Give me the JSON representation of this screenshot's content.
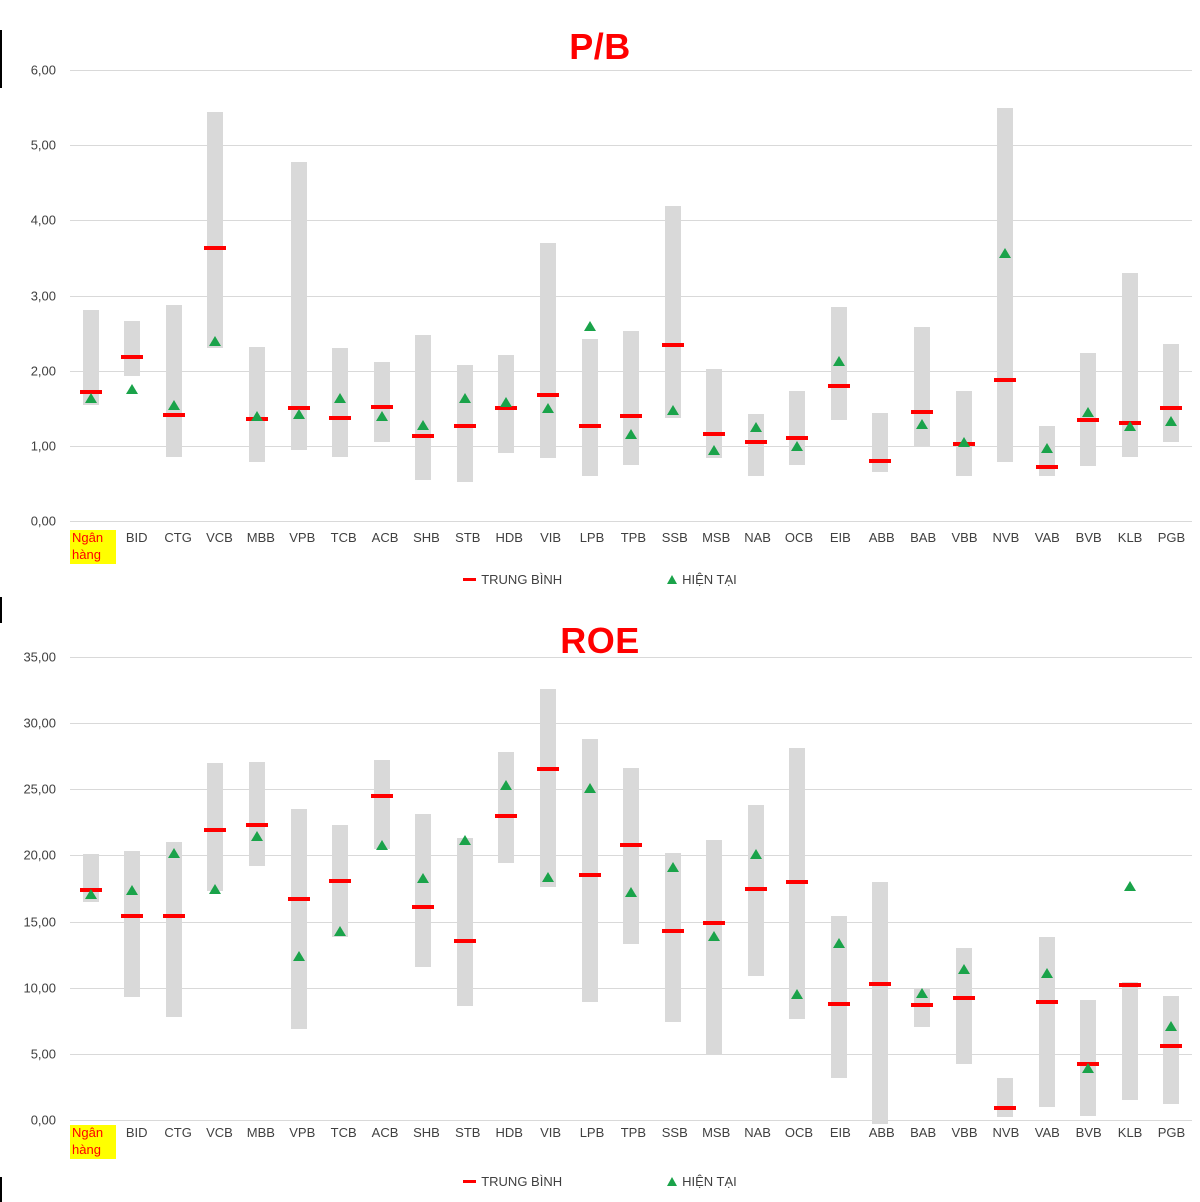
{
  "colors": {
    "bar": "#d9d9d9",
    "average_marker": "#ff0000",
    "current_marker": "#1aa34a",
    "title": "#ff0000",
    "axis_text": "#404040",
    "gridline": "#d9d9d9",
    "highlight_background": "#ffff00",
    "highlight_text": "#ff0000"
  },
  "chart_data": [
    {
      "type": "bar",
      "subtype": "floating-range-bar-with-markers",
      "title": "P/B",
      "highlight_first": true,
      "legend": {
        "average": "TRUNG BÌNH",
        "current": "HIỆN TẠI"
      },
      "y_axis": {
        "min": 0,
        "max": 6,
        "step": 1,
        "tick_labels": [
          "6,00",
          "5,00",
          "4,00",
          "3,00",
          "2,00",
          "1,00",
          "0,00"
        ],
        "grid": true
      },
      "categories": [
        "Ngân hàng",
        "BID",
        "CTG",
        "VCB",
        "MBB",
        "VPB",
        "TCB",
        "ACB",
        "SHB",
        "STB",
        "HDB",
        "VIB",
        "LPB",
        "TPB",
        "SSB",
        "MSB",
        "NAB",
        "OCB",
        "EIB",
        "ABB",
        "BAB",
        "VBB",
        "NVB",
        "VAB",
        "BVB",
        "KLB",
        "PGB"
      ],
      "series": [
        {
          "name": "range",
          "type": "bar-range",
          "low": [
            1.55,
            1.93,
            0.85,
            2.3,
            0.78,
            0.95,
            0.85,
            1.05,
            0.55,
            0.52,
            0.9,
            0.84,
            0.6,
            0.75,
            1.37,
            0.84,
            0.6,
            0.75,
            1.35,
            0.65,
            1.0,
            0.6,
            0.78,
            0.6,
            0.73,
            0.85,
            1.05
          ],
          "high": [
            2.81,
            2.66,
            2.87,
            5.44,
            2.32,
            4.78,
            2.3,
            2.12,
            2.47,
            2.07,
            2.21,
            3.7,
            2.42,
            2.53,
            4.19,
            2.02,
            1.42,
            1.73,
            2.85,
            1.44,
            2.58,
            1.73,
            5.5,
            1.27,
            2.23,
            3.3,
            2.35
          ]
        },
        {
          "name": "TRUNG BÌNH",
          "type": "dash",
          "color": "#ff0000",
          "values": [
            1.72,
            2.18,
            1.41,
            3.63,
            1.36,
            1.5,
            1.37,
            1.52,
            1.13,
            1.27,
            1.51,
            1.68,
            1.27,
            1.4,
            2.34,
            1.16,
            1.05,
            1.1,
            1.8,
            0.8,
            1.45,
            1.02,
            1.88,
            0.72,
            1.34,
            1.3,
            1.5
          ]
        },
        {
          "name": "HIỆN TẠI",
          "type": "triangle",
          "color": "#1aa34a",
          "values": [
            1.63,
            1.75,
            1.55,
            2.4,
            1.4,
            1.42,
            1.64,
            1.4,
            1.28,
            1.63,
            1.58,
            1.51,
            2.6,
            1.16,
            1.48,
            0.94,
            1.25,
            1.0,
            2.13,
            null,
            1.29,
            1.05,
            3.57,
            0.97,
            1.45,
            1.27,
            1.33
          ]
        }
      ]
    },
    {
      "type": "bar",
      "subtype": "floating-range-bar-with-markers",
      "title": "ROE",
      "highlight_first": true,
      "legend": {
        "average": "TRUNG BÌNH",
        "current": "HIỆN TẠI"
      },
      "y_axis": {
        "min": 0,
        "max": 35,
        "step": 5,
        "tick_labels": [
          "35,00",
          "30,00",
          "25,00",
          "20,00",
          "15,00",
          "10,00",
          "5,00",
          "0,00"
        ],
        "grid": true
      },
      "categories": [
        "Ngân hàng",
        "BID",
        "CTG",
        "VCB",
        "MBB",
        "VPB",
        "TCB",
        "ACB",
        "SHB",
        "STB",
        "HDB",
        "VIB",
        "LPB",
        "TPB",
        "SSB",
        "MSB",
        "NAB",
        "OCB",
        "EIB",
        "ABB",
        "BAB",
        "VBB",
        "NVB",
        "VAB",
        "BVB",
        "KLB",
        "PGB"
      ],
      "series": [
        {
          "name": "range",
          "type": "bar-range",
          "low": [
            16.5,
            9.3,
            7.8,
            17.3,
            19.2,
            6.9,
            13.8,
            20.5,
            11.6,
            8.6,
            19.4,
            17.6,
            8.9,
            13.3,
            7.4,
            4.9,
            10.9,
            7.6,
            3.2,
            -0.3,
            7.0,
            4.2,
            0.2,
            1.0,
            0.3,
            1.5,
            1.2
          ],
          "high": [
            20.1,
            20.3,
            21.0,
            27.0,
            27.1,
            23.5,
            22.3,
            27.2,
            23.1,
            21.3,
            27.8,
            32.6,
            28.8,
            26.6,
            20.2,
            21.2,
            23.8,
            28.1,
            15.4,
            18.0,
            10.0,
            13.0,
            3.2,
            13.8,
            9.1,
            10.4,
            9.4
          ]
        },
        {
          "name": "TRUNG BÌNH",
          "type": "dash",
          "color": "#ff0000",
          "values": [
            17.4,
            15.4,
            15.4,
            21.9,
            22.3,
            16.7,
            18.1,
            24.5,
            16.1,
            13.5,
            23.0,
            26.5,
            18.5,
            20.8,
            14.3,
            14.9,
            17.5,
            18.0,
            8.8,
            10.3,
            8.7,
            9.2,
            0.9,
            8.9,
            4.2,
            10.2,
            5.6
          ]
        },
        {
          "name": "HIỆN TẠI",
          "type": "triangle",
          "color": "#1aa34a",
          "values": [
            17.1,
            17.4,
            20.2,
            17.5,
            21.5,
            12.4,
            14.3,
            20.8,
            18.3,
            21.2,
            25.3,
            18.4,
            25.1,
            17.2,
            19.1,
            13.9,
            20.1,
            9.5,
            13.4,
            null,
            9.6,
            11.4,
            null,
            11.1,
            3.9,
            17.7,
            7.1
          ]
        }
      ]
    }
  ]
}
